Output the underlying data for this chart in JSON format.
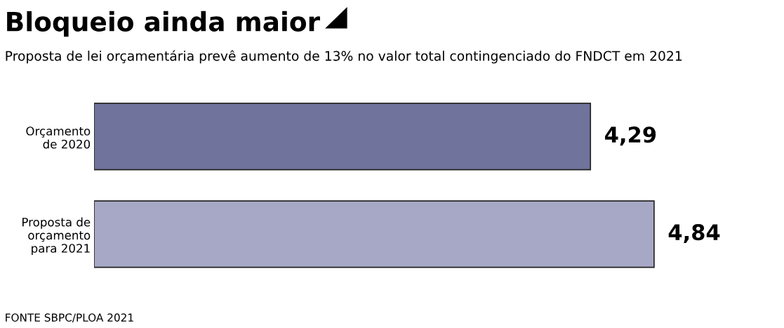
{
  "chart_data": {
    "type": "bar",
    "orientation": "horizontal",
    "title": "Bloqueio ainda maior",
    "subtitle": "Proposta de lei orçamentária prevê aumento de 13% no valor total contingenciado do FNDCT em 2021",
    "categories": [
      "Orçamento\nde 2020",
      "Proposta de\norçamento\npara 2021"
    ],
    "values": [
      4.29,
      4.84
    ],
    "colors": [
      "#70739b",
      "#a7a8c6"
    ],
    "value_labels": [
      "4,29",
      "4,84"
    ],
    "annotations": [
      "FONTE SBPC/PLOA 2021"
    ],
    "grid": false,
    "legend": false
  }
}
